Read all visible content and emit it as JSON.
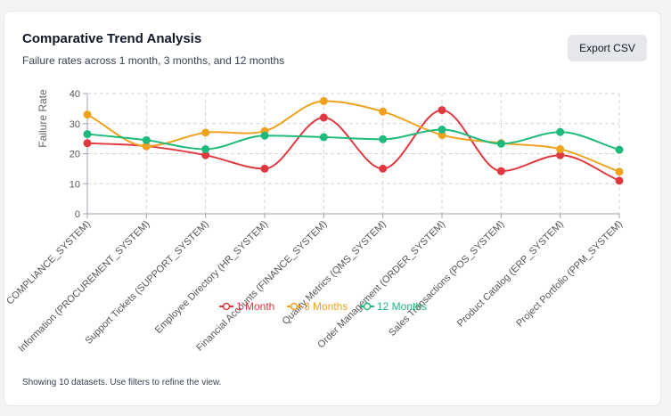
{
  "header": {
    "title": "Comparative Trend Analysis",
    "subtitle": "Failure rates across 1 month, 3 months, and 12 months",
    "export_label": "Export CSV"
  },
  "footer": {
    "text": "Showing 10 datasets. Use filters to refine the view."
  },
  "chart_data": {
    "type": "line",
    "title": "",
    "xlabel": "",
    "ylabel": "Failure Rate",
    "ylim": [
      0,
      40
    ],
    "yticks": [
      0,
      10,
      20,
      30,
      40
    ],
    "grid": true,
    "legend_position": "bottom",
    "categories": [
      "COMPLIANCE_SYSTEM)",
      "Information (PROCUREMENT_SYSTEM)",
      "Support Tickets (SUPPORT_SYSTEM)",
      "Employee Directory (HR_SYSTEM)",
      "Financial Accounts (FINANCE_SYSTEM)",
      "Quality Metrics (QMS_SYSTEM)",
      "Order Management (ORDER_SYSTEM)",
      "Sales Transactions (POS_SYSTEM)",
      "Product Catalog (ERP_SYSTEM)",
      "Project Portfolio (PPM_SYSTEM)"
    ],
    "series": [
      {
        "name": "1 Month",
        "color": "#e0383e",
        "values": [
          23.5,
          22.5,
          19.5,
          15,
          32,
          15,
          34.5,
          14.2,
          19.5,
          11
        ]
      },
      {
        "name": "3 Months",
        "color": "#f0a21e",
        "values": [
          33,
          22.5,
          27,
          27.5,
          37.5,
          34,
          26.2,
          23.5,
          21.5,
          14
        ]
      },
      {
        "name": "12 Months",
        "color": "#1dba7a",
        "values": [
          26.5,
          24.5,
          21.5,
          26,
          25.5,
          24.8,
          28,
          23.3,
          27.2,
          21.3
        ]
      }
    ]
  }
}
